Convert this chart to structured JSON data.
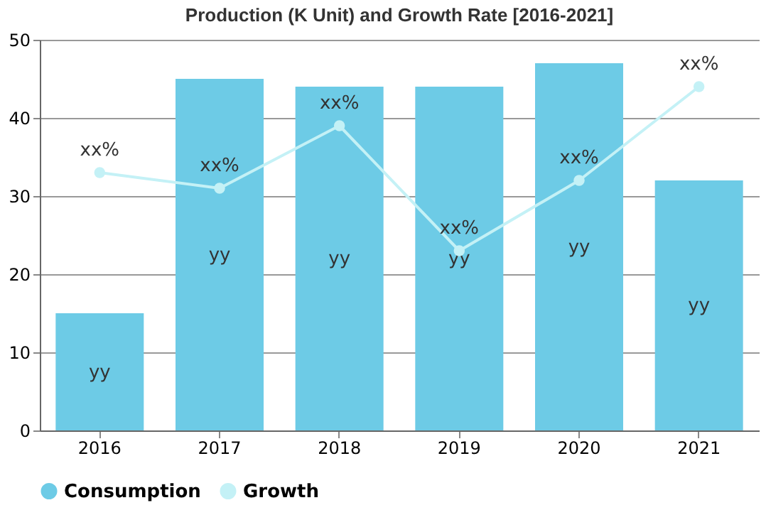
{
  "chart_data": {
    "type": "bar",
    "title": "Production (K Unit) and Growth Rate [2016-2021]",
    "categories": [
      "2016",
      "2017",
      "2018",
      "2019",
      "2020",
      "2021"
    ],
    "series": [
      {
        "name": "Consumption",
        "color": "#6dcbe6",
        "values": [
          15,
          45,
          44,
          44,
          47,
          32
        ],
        "value_labels": [
          "yy",
          "yy",
          "yy",
          "yy",
          "yy",
          "yy"
        ]
      },
      {
        "name": "Growth",
        "type": "line",
        "color": "#c4f1f6",
        "values": [
          33,
          31,
          39,
          23,
          32,
          44
        ],
        "value_labels": [
          "xx%",
          "xx%",
          "xx%",
          "xx%",
          "xx%",
          "xx%"
        ],
        "marker": "circle"
      }
    ],
    "ylim": [
      0,
      50
    ],
    "yticks": [
      0,
      10,
      20,
      30,
      40,
      50
    ],
    "grid": "y",
    "legend": "bottom"
  }
}
